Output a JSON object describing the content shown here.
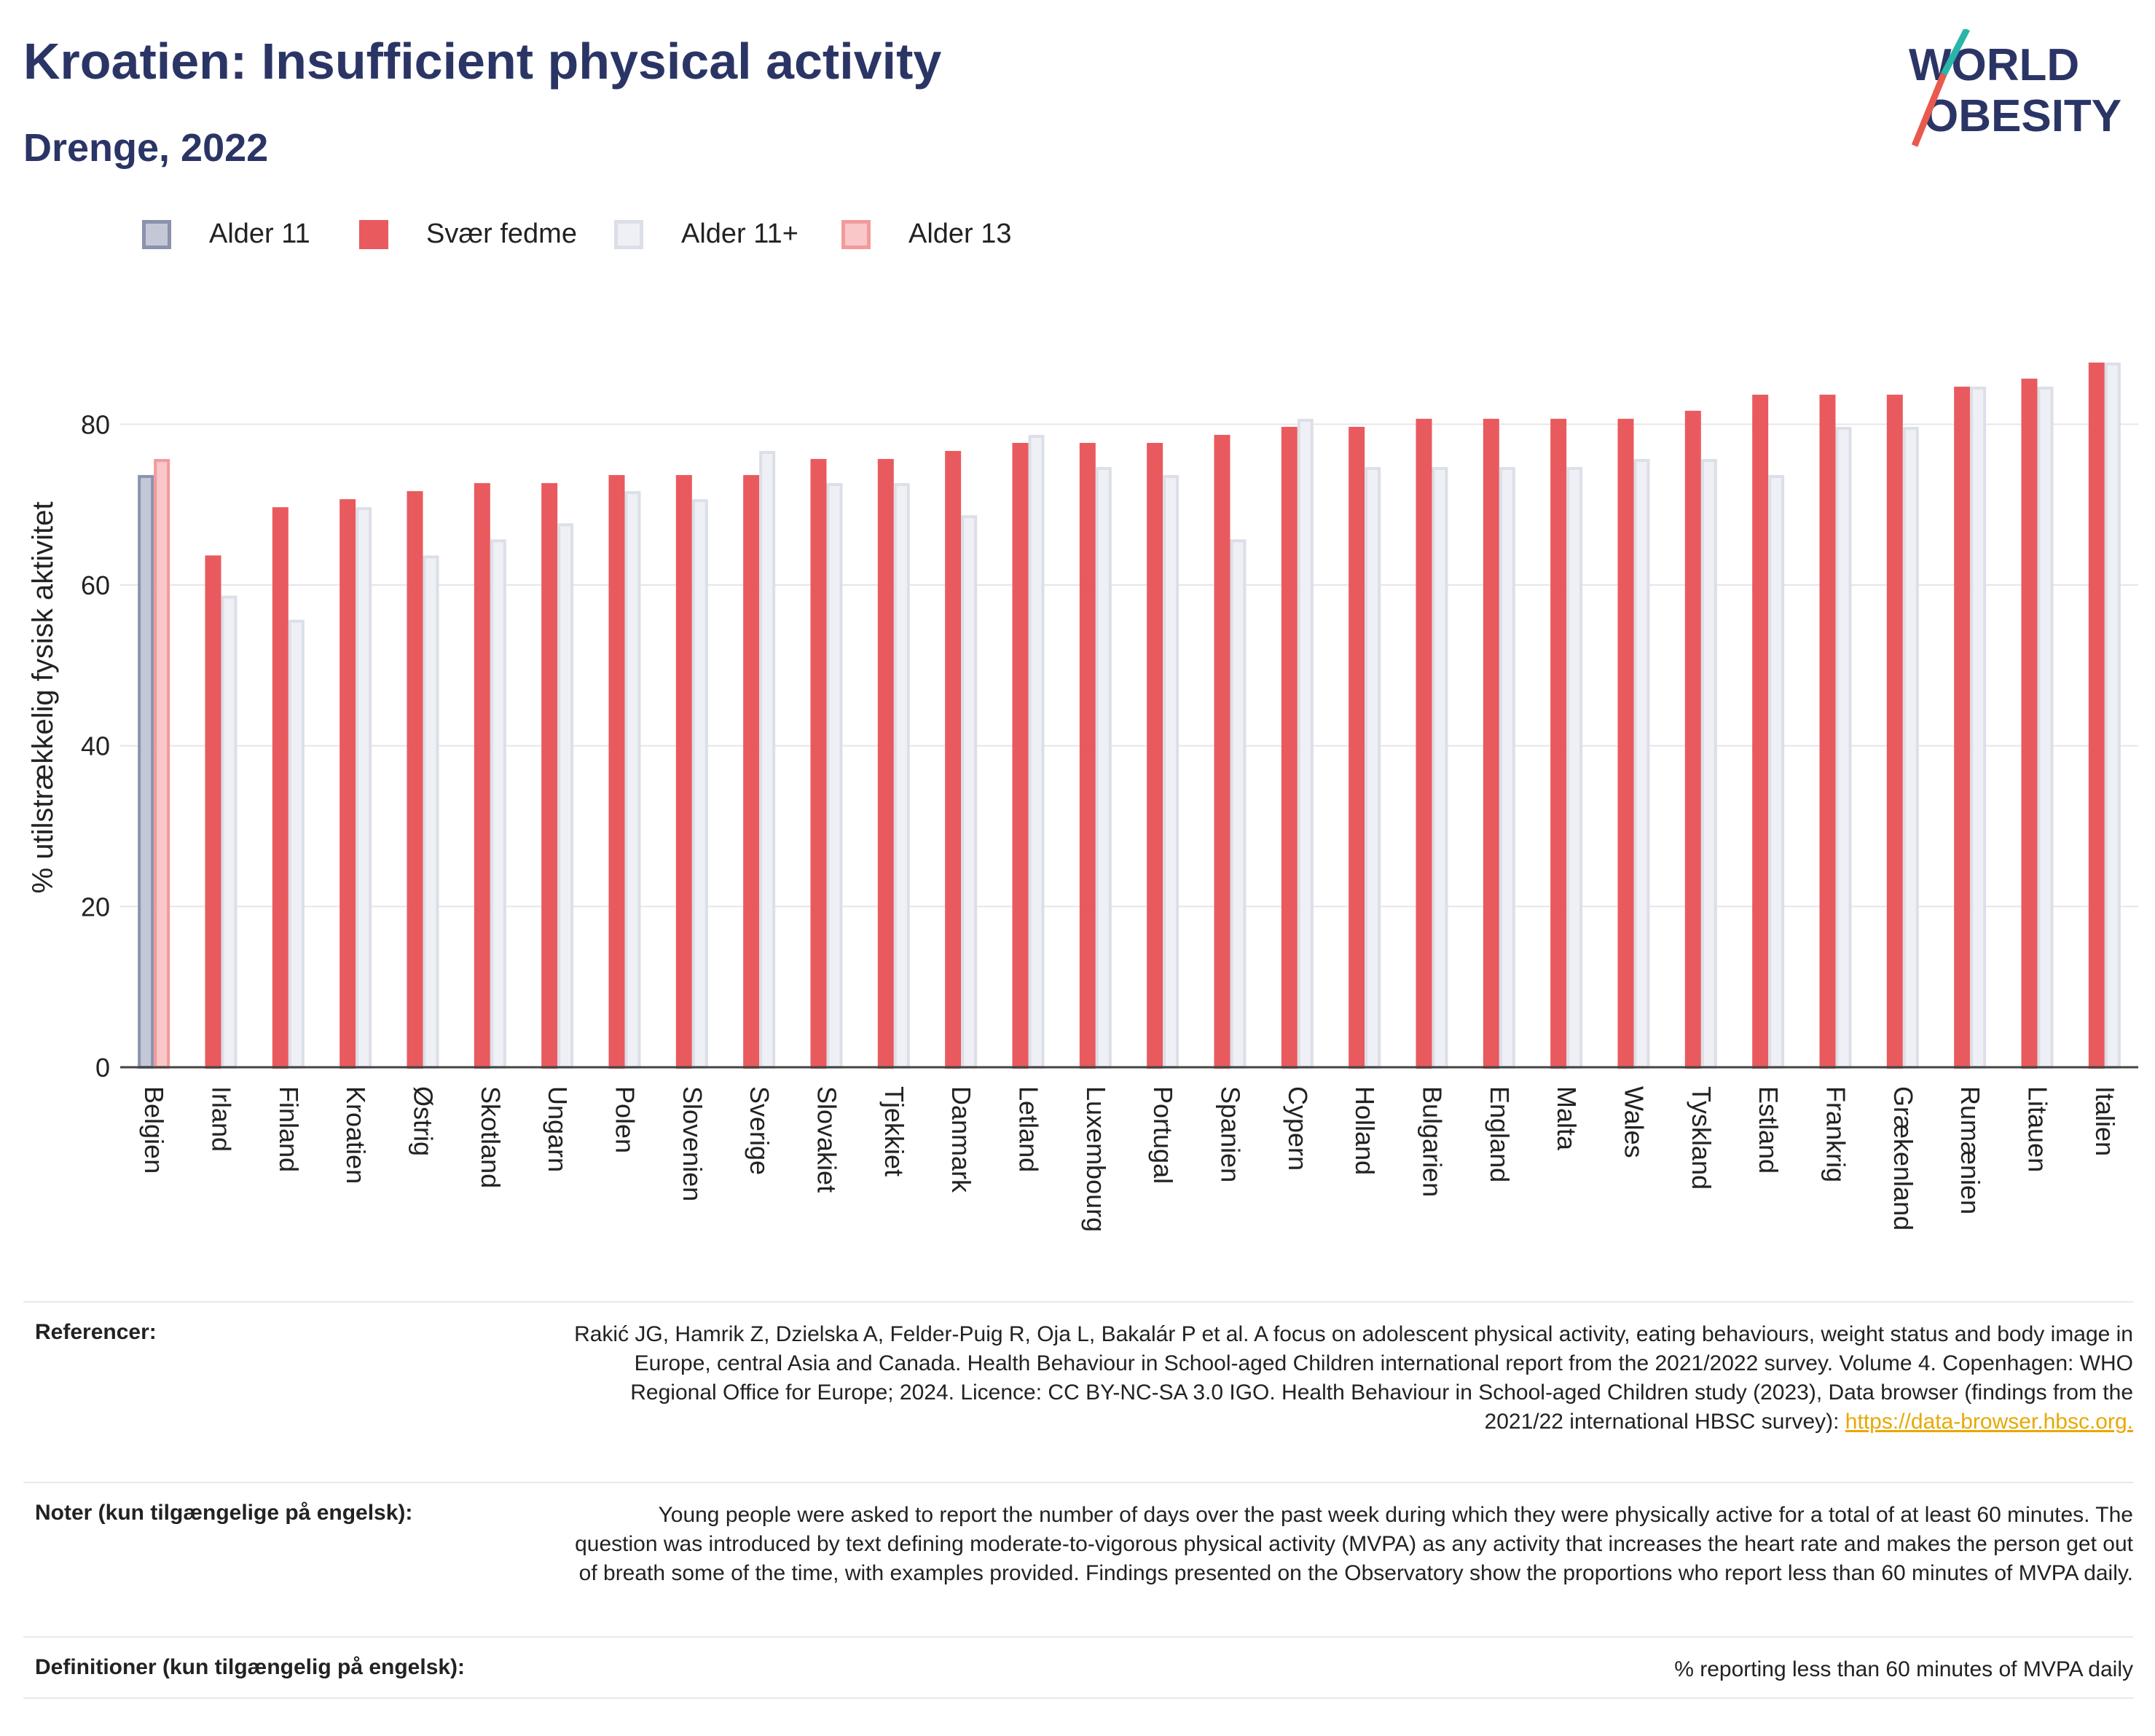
{
  "header": {
    "title": "Kroatien: Insufficient physical activity",
    "subtitle": "Drenge, 2022"
  },
  "logo": {
    "line1": "WORLD",
    "line2": "OBESITY"
  },
  "legend": [
    {
      "label": "Alder 11",
      "fill": "#c4c8d6",
      "border": "#8a92ad"
    },
    {
      "label": "Svær fedme",
      "fill": "#e95a5e",
      "border": "#e95a5e"
    },
    {
      "label": "Alder 11+",
      "fill": "#eef0f5",
      "border": "#dcdfe8"
    },
    {
      "label": "Alder 13",
      "fill": "#f9c7c8",
      "border": "#f29a9c"
    }
  ],
  "chart_data": {
    "type": "bar",
    "ylabel": "% utilstrækkelig fysisk aktivitet",
    "ylim": [
      0,
      92
    ],
    "yticks": [
      0,
      20,
      40,
      60,
      80
    ],
    "grid": true,
    "categories": [
      "Belgien",
      "Irland",
      "Finland",
      "Kroatien",
      "Østrig",
      "Skotland",
      "Ungarn",
      "Polen",
      "Slovenien",
      "Sverige",
      "Slovakiet",
      "Tjekkiet",
      "Danmark",
      "Letland",
      "Luxembourg",
      "Portugal",
      "Spanien",
      "Cypern",
      "Holland",
      "Bulgarien",
      "England",
      "Malta",
      "Wales",
      "Tyskland",
      "Estland",
      "Frankrig",
      "Grækenland",
      "Rumænien",
      "Litauen",
      "Italien"
    ],
    "series": [
      {
        "name": "Alder 11",
        "values": [
          73.5,
          null,
          null,
          null,
          null,
          null,
          null,
          null,
          null,
          null,
          null,
          null,
          null,
          null,
          null,
          null,
          null,
          null,
          null,
          null,
          null,
          null,
          null,
          null,
          null,
          null,
          null,
          null,
          null,
          null
        ]
      },
      {
        "name": "Svær fedme",
        "values": [
          null,
          63.5,
          69.5,
          70.5,
          71.5,
          72.5,
          72.5,
          73.5,
          73.5,
          73.5,
          75.5,
          75.5,
          76.5,
          77.5,
          77.5,
          77.5,
          78.5,
          79.5,
          79.5,
          80.5,
          80.5,
          80.5,
          80.5,
          81.5,
          83.5,
          83.5,
          83.5,
          84.5,
          85.5,
          87.5
        ]
      },
      {
        "name": "Alder 11+",
        "values": [
          null,
          58.5,
          55.5,
          69.5,
          63.5,
          65.5,
          67.5,
          71.5,
          70.5,
          76.5,
          72.5,
          72.5,
          68.5,
          78.5,
          74.5,
          73.5,
          65.5,
          80.5,
          74.5,
          74.5,
          74.5,
          74.5,
          75.5,
          75.5,
          73.5,
          79.5,
          79.5,
          84.5,
          84.5,
          87.5
        ]
      },
      {
        "name": "Alder 13",
        "values": [
          75.5,
          null,
          null,
          null,
          null,
          null,
          null,
          null,
          null,
          null,
          null,
          null,
          null,
          null,
          null,
          null,
          null,
          null,
          null,
          null,
          null,
          null,
          null,
          null,
          null,
          null,
          null,
          null,
          null,
          null
        ]
      }
    ]
  },
  "references": [
    {
      "label": "Referencer:",
      "text": "Rakić JG, Hamrik Z, Dzielska A, Felder-Puig R, Oja L, Bakalár P et al. A focus on adolescent physical activity, eating behaviours, weight status and body image in Europe, central Asia and Canada. Health Behaviour in School-aged Children international report from the 2021/2022 survey. Volume 4. Copenhagen: WHO Regional Office for Europe; 2024. Licence: CC BY-NC-SA 3.0 IGO. Health Behaviour in School-aged Children study (2023), Data browser (findings from the 2021/22 international HBSC survey): ",
      "link": "https://data-browser.hbsc.org."
    },
    {
      "label": "Noter (kun tilgængelige på engelsk):",
      "text": "Young people were asked to report the number of days over the past week during which they were physically active for a total of at least 60 minutes. The question was introduced by text defining moderate-to-vigorous physical activity (MVPA) as any activity that increases the heart rate and makes the person get out of breath some of the time, with examples provided. Findings presented on the Observatory show the proportions who report less than 60 minutes of MVPA daily."
    },
    {
      "label": "Definitioner (kun tilgængelig på engelsk):",
      "text": "% reporting less than 60 minutes of MVPA daily"
    }
  ]
}
